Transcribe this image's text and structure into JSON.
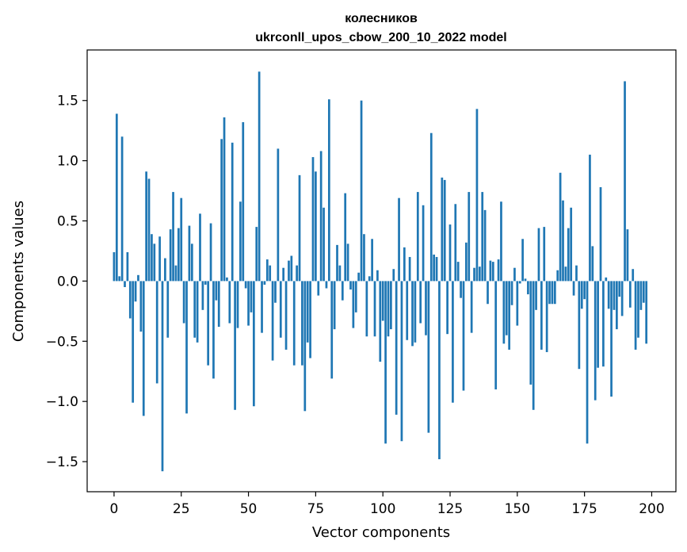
{
  "chart_data": {
    "type": "bar",
    "title": "колесников",
    "subtitle": "ukrconll_upos_cbow_200_10_2022 model",
    "xlabel": "Vector components",
    "ylabel": "Components values",
    "xlim": [
      -10,
      209
    ],
    "ylim": [
      -1.75,
      1.92
    ],
    "xticks": [
      0,
      25,
      50,
      75,
      100,
      125,
      150,
      175,
      200
    ],
    "xtick_labels": [
      "0",
      "25",
      "50",
      "75",
      "100",
      "125",
      "150",
      "175",
      "200"
    ],
    "yticks": [
      -1.5,
      -1.0,
      -0.5,
      0.0,
      0.5,
      1.0,
      1.5
    ],
    "ytick_labels": [
      "−1.5",
      "−1.0",
      "−0.5",
      "0.0",
      "0.5",
      "1.0",
      "1.5"
    ],
    "grid": false,
    "bar_color": "#1f77b4",
    "values": [
      0.24,
      1.39,
      0.04,
      1.2,
      -0.05,
      0.24,
      -0.31,
      -1.01,
      -0.17,
      0.05,
      -0.42,
      -1.12,
      0.91,
      0.85,
      0.39,
      0.31,
      -0.85,
      0.37,
      -1.58,
      0.19,
      -0.47,
      0.43,
      0.74,
      0.13,
      0.44,
      0.69,
      -0.35,
      -1.1,
      0.46,
      0.31,
      -0.47,
      -0.51,
      0.56,
      -0.24,
      -0.03,
      -0.7,
      0.48,
      -0.81,
      -0.16,
      -0.38,
      1.18,
      1.36,
      0.03,
      -0.35,
      1.15,
      -1.07,
      -0.39,
      0.66,
      1.32,
      -0.06,
      -0.37,
      -0.26,
      -1.04,
      0.45,
      1.74,
      -0.43,
      -0.03,
      0.18,
      0.13,
      -0.66,
      -0.18,
      1.1,
      -0.47,
      0.11,
      -0.57,
      0.17,
      0.21,
      -0.7,
      0.13,
      0.88,
      -0.7,
      -1.08,
      -0.51,
      -0.64,
      1.03,
      0.91,
      -0.12,
      1.08,
      0.61,
      -0.06,
      1.51,
      -0.81,
      -0.4,
      0.3,
      0.13,
      -0.16,
      0.73,
      0.31,
      -0.07,
      -0.39,
      -0.26,
      0.07,
      1.5,
      0.39,
      -0.46,
      0.04,
      0.35,
      -0.46,
      0.09,
      -0.67,
      -0.33,
      -1.35,
      -0.46,
      -0.4,
      0.1,
      -1.11,
      0.69,
      -1.33,
      0.28,
      -0.49,
      0.2,
      -0.54,
      -0.51,
      0.74,
      -0.35,
      0.63,
      -0.45,
      -1.26,
      1.23,
      0.22,
      0.2,
      -1.48,
      0.86,
      0.84,
      -0.44,
      0.47,
      -1.01,
      0.64,
      0.16,
      -0.14,
      -0.91,
      0.32,
      0.74,
      -0.43,
      0.11,
      1.43,
      0.12,
      0.74,
      0.59,
      -0.19,
      0.17,
      0.16,
      -0.9,
      0.18,
      0.66,
      -0.52,
      -0.45,
      -0.57,
      -0.2,
      0.11,
      -0.37,
      -0.02,
      0.35,
      0.02,
      -0.11,
      -0.86,
      -1.07,
      -0.24,
      0.44,
      -0.57,
      0.45,
      -0.59,
      -0.19,
      -0.19,
      -0.19,
      0.09,
      0.9,
      0.67,
      0.12,
      0.44,
      0.61,
      -0.12,
      0.13,
      -0.73,
      -0.23,
      -0.15,
      -1.35,
      1.05,
      0.29,
      -0.99,
      -0.72,
      0.78,
      -0.71,
      0.03,
      -0.23,
      -0.96,
      -0.24,
      -0.4,
      -0.13,
      -0.29,
      1.66,
      0.43,
      -0.22,
      0.1,
      -0.57,
      -0.47,
      -0.24,
      -0.18,
      -0.52
    ]
  }
}
